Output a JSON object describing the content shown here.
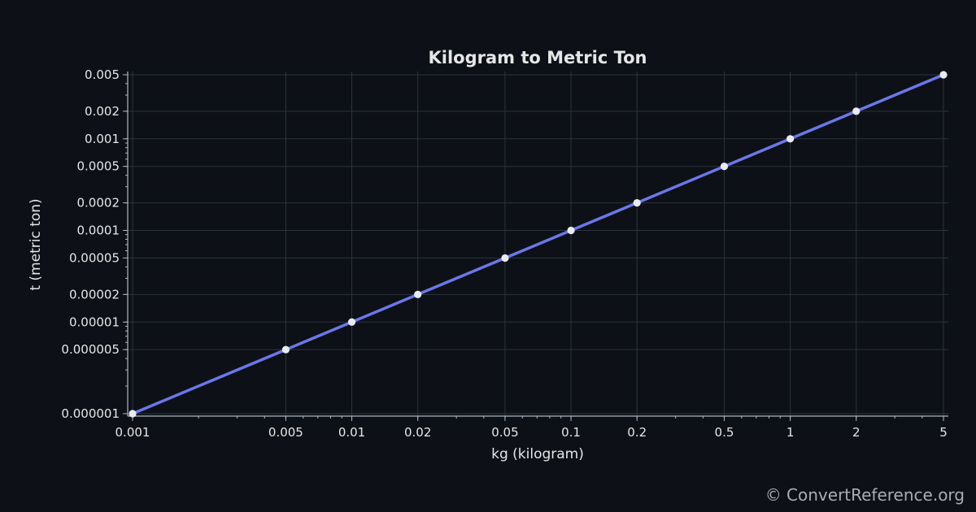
{
  "chart_data": {
    "type": "line",
    "title": "Kilogram to Metric Ton",
    "xlabel": "kg (kilogram)",
    "ylabel": "t (metric ton)",
    "x_scale": "log",
    "y_scale": "log",
    "xlim": [
      0.001,
      5
    ],
    "ylim": [
      1e-06,
      0.005
    ],
    "grid": true,
    "x_ticks": [
      "0.001",
      "0.005",
      "0.01",
      "0.02",
      "0.05",
      "0.1",
      "0.2",
      "0.5",
      "1",
      "2",
      "5"
    ],
    "y_ticks": [
      "0.000001",
      "0.000005",
      "0.00001",
      "0.00002",
      "0.00005",
      "0.0001",
      "0.0002",
      "0.0005",
      "0.001",
      "0.002",
      "0.005"
    ],
    "series": [
      {
        "color": "#6b77e8",
        "x": [
          0.001,
          0.005,
          0.01,
          0.02,
          0.05,
          0.1,
          0.2,
          0.5,
          1,
          2,
          5
        ],
        "y": [
          1e-06,
          5e-06,
          1e-05,
          2e-05,
          5e-05,
          0.0001,
          0.0002,
          0.0005,
          0.001,
          0.002,
          0.005
        ]
      }
    ]
  },
  "watermark": "© ConvertReference.org"
}
